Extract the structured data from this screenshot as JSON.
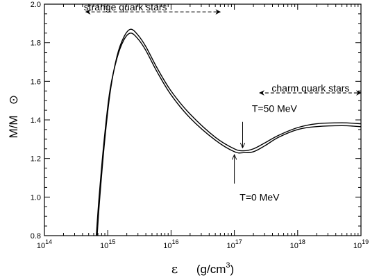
{
  "chart_data": {
    "type": "line",
    "title": "",
    "x_scale": "log",
    "xlim": [
      100000000000000.0,
      1e+19
    ],
    "ylim": [
      0.8,
      2.0
    ],
    "xlabel": {
      "symbol": "ε",
      "units_prefix": "(g/cm",
      "units_exp": "3",
      "units_suffix": ")"
    },
    "ylabel": "M/M",
    "ylabel_symbol": "⊙",
    "x_ticks": [
      {
        "value": 100000000000000.0,
        "base": "10",
        "exp": "14"
      },
      {
        "value": 1000000000000000.0,
        "base": "10",
        "exp": "15"
      },
      {
        "value": 1e+16,
        "base": "10",
        "exp": "16"
      },
      {
        "value": 1e+17,
        "base": "10",
        "exp": "17"
      },
      {
        "value": 1e+18,
        "base": "10",
        "exp": "18"
      },
      {
        "value": 1e+19,
        "base": "10",
        "exp": "19"
      }
    ],
    "y_ticks": [
      "0.8",
      "1.0",
      "1.2",
      "1.4",
      "1.6",
      "1.8",
      "2.0"
    ],
    "y_tick_values": [
      0.8,
      1.0,
      1.2,
      1.4,
      1.6,
      1.8,
      2.0
    ],
    "grid": false,
    "series": [
      {
        "name": "T=50 MeV",
        "x": [
          680000000000000.0,
          750000000000000.0,
          900000000000000.0,
          1100000000000000.0,
          1400000000000000.0,
          1800000000000000.0,
          2300000000000000.0,
          3000000000000000.0,
          4000000000000000.0,
          6000000000000000.0,
          1e+16,
          2e+16,
          5e+16,
          1e+17,
          1.4e+17,
          2e+17,
          3e+17,
          5e+17,
          1e+18,
          2e+18,
          5e+18,
          1e+19
        ],
        "y": [
          0.8,
          1.0,
          1.3,
          1.55,
          1.73,
          1.83,
          1.87,
          1.84,
          1.78,
          1.67,
          1.55,
          1.43,
          1.31,
          1.25,
          1.24,
          1.25,
          1.28,
          1.32,
          1.36,
          1.38,
          1.385,
          1.38
        ]
      },
      {
        "name": "T=0 MeV",
        "x": [
          660000000000000.0,
          730000000000000.0,
          880000000000000.0,
          1080000000000000.0,
          1400000000000000.0,
          1800000000000000.0,
          2300000000000000.0,
          3000000000000000.0,
          4000000000000000.0,
          6000000000000000.0,
          1e+16,
          2e+16,
          5e+16,
          1e+17,
          1.4e+17,
          2e+17,
          3e+17,
          5e+17,
          1e+18,
          2e+18,
          5e+18,
          1e+19
        ],
        "y": [
          0.8,
          1.0,
          1.3,
          1.55,
          1.72,
          1.815,
          1.85,
          1.82,
          1.76,
          1.65,
          1.53,
          1.41,
          1.295,
          1.235,
          1.23,
          1.235,
          1.265,
          1.31,
          1.35,
          1.365,
          1.37,
          1.365
        ]
      }
    ],
    "annotations": [
      {
        "id": "strange",
        "text": "strange quark stars",
        "arrow_x": [
          450000000000000.0,
          6e+16
        ],
        "arrow_y": 1.96,
        "text_x": 1900000000000000.0,
        "text_y": 2.0
      },
      {
        "id": "charm",
        "text": "charm quark stars",
        "arrow_x": [
          2.5e+17,
          1e+19
        ],
        "arrow_y": 1.54,
        "text_x": 1.6e+18,
        "text_y": 1.58
      },
      {
        "id": "t50",
        "text": "T=50 MeV",
        "label_x": 4.3e+17,
        "label_y": 1.46,
        "arrow_x": 1.35e+17,
        "arrow_from_y": 1.39,
        "arrow_to_y": 1.255
      },
      {
        "id": "t0",
        "text": "T=0 MeV",
        "label_x": 2.5e+17,
        "label_y": 1.0,
        "arrow_x": 1e+17,
        "arrow_from_y": 1.07,
        "arrow_to_y": 1.22
      }
    ]
  }
}
